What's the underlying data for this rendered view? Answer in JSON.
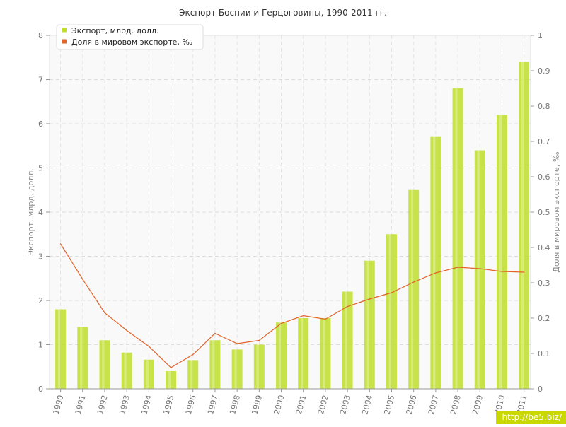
{
  "chart_data": {
    "type": "bar+line",
    "title": "Экспорт Боснии и Герцоговины, 1990-2011 гг.",
    "categories": [
      "1990",
      "1991",
      "1992",
      "1993",
      "1994",
      "1995",
      "1996",
      "1997",
      "1998",
      "1999",
      "2000",
      "2001",
      "2002",
      "2003",
      "2004",
      "2005",
      "2006",
      "2007",
      "2008",
      "2009",
      "2010",
      "2011"
    ],
    "series": [
      {
        "name": "Экспорт, млрд. долл.",
        "type": "bar",
        "axis": "left",
        "color": "#bfdf2a",
        "values": [
          1.8,
          1.4,
          1.1,
          0.82,
          0.66,
          0.4,
          0.65,
          1.1,
          0.89,
          1.0,
          1.5,
          1.6,
          1.6,
          2.2,
          2.9,
          3.5,
          4.5,
          5.7,
          6.8,
          5.4,
          6.2,
          7.4
        ]
      },
      {
        "name": "Доля в мировом экспорте, ‰",
        "type": "line",
        "axis": "right",
        "color": "#e2642b",
        "values": [
          0.41,
          0.31,
          0.215,
          0.165,
          0.12,
          0.06,
          0.097,
          0.157,
          0.128,
          0.137,
          0.185,
          0.207,
          0.197,
          0.233,
          0.254,
          0.272,
          0.302,
          0.328,
          0.344,
          0.34,
          0.332,
          0.33
        ]
      }
    ],
    "ylabel": "Экспорт, млрд. долл.",
    "ylabel_right": "Доля в мировом экспорте, ‰",
    "ylim": [
      0,
      8
    ],
    "y_ticks": [
      "0",
      "1",
      "2",
      "3",
      "4",
      "5",
      "6",
      "7",
      "8"
    ],
    "ylim_right": [
      0,
      1
    ],
    "y_ticks_right": [
      "0",
      "0.1",
      "0.2",
      "0.3",
      "0.4",
      "0.5",
      "0.6",
      "0.7",
      "0.8",
      "0.9",
      "1"
    ],
    "grid": true,
    "legend_position": "top-left"
  },
  "watermark": "http://be5.biz/"
}
